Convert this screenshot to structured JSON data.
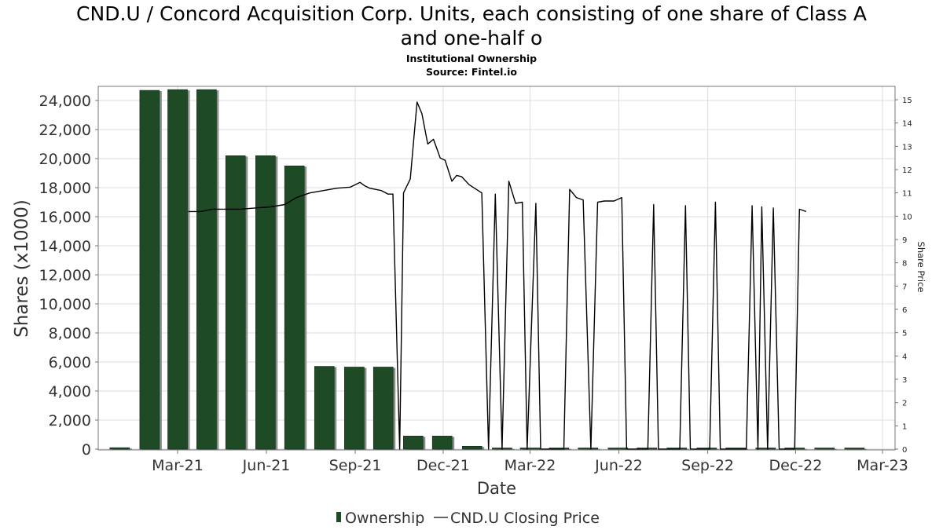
{
  "header": {
    "title_line1": "CND.U / Concord Acquisition Corp. Units, each consisting of one share of Class A",
    "title_line2": "and one-half o",
    "subtitle_line1": "Institutional Ownership",
    "subtitle_line2": "Source: Fintel.io"
  },
  "chart_data": {
    "type": "bar",
    "xlabel": "Date",
    "ylabel": "Shares (x1000)",
    "y2label": "Share Price",
    "ylim": [
      0,
      25000
    ],
    "y2lim": [
      0,
      15.5
    ],
    "yticks": [
      "0",
      "2,000",
      "4,000",
      "6,000",
      "8,000",
      "10,000",
      "12,000",
      "14,000",
      "16,000",
      "18,000",
      "20,000",
      "22,000",
      "24,000"
    ],
    "y2ticks": [
      "0",
      "1",
      "2",
      "3",
      "4",
      "5",
      "6",
      "7",
      "8",
      "9",
      "10",
      "11",
      "12",
      "13",
      "14",
      "15"
    ],
    "xticks": [
      "Mar-21",
      "Jun-21",
      "Sep-21",
      "Dec-21",
      "Mar-22",
      "Jun-22",
      "Sep-22",
      "Dec-22",
      "Mar-23"
    ],
    "grid": true,
    "legend_position": "bottom-center",
    "colors": {
      "bar": "#1e4a26",
      "bar_shadow": "#8c8c8c",
      "line": "#000000",
      "grid": "#dddddd"
    },
    "series": [
      {
        "name": "Ownership",
        "type": "bar",
        "categories": [
          "2020-12-31",
          "2021-01-31",
          "2021-03-01",
          "2021-03-31",
          "2021-04-30",
          "2021-05-31",
          "2021-06-30",
          "2021-07-31",
          "2021-08-31",
          "2021-09-30",
          "2021-10-31",
          "2021-11-30",
          "2021-12-31",
          "2022-01-31",
          "2022-03-01",
          "2022-03-31",
          "2022-04-30",
          "2022-05-31",
          "2022-06-30",
          "2022-07-31",
          "2022-08-31",
          "2022-09-30",
          "2022-10-31",
          "2022-11-30",
          "2022-12-31",
          "2023-01-31"
        ],
        "values": [
          100,
          24700,
          24750,
          24750,
          20200,
          20200,
          19500,
          5700,
          5650,
          5650,
          900,
          900,
          200,
          80,
          80,
          80,
          80,
          80,
          80,
          80,
          80,
          80,
          80,
          80,
          80,
          80
        ]
      },
      {
        "name": "CND.U Closing Price",
        "type": "line",
        "points": [
          [
            "2021-03-12",
            10.2
          ],
          [
            "2021-03-25",
            10.2
          ],
          [
            "2021-04-06",
            10.3
          ],
          [
            "2021-04-20",
            10.3
          ],
          [
            "2021-05-05",
            10.3
          ],
          [
            "2021-05-20",
            10.35
          ],
          [
            "2021-06-05",
            10.4
          ],
          [
            "2021-06-20",
            10.5
          ],
          [
            "2021-07-02",
            10.8
          ],
          [
            "2021-07-16",
            11.0
          ],
          [
            "2021-07-30",
            11.1
          ],
          [
            "2021-08-13",
            11.2
          ],
          [
            "2021-08-27",
            11.25
          ],
          [
            "2021-09-06",
            11.45
          ],
          [
            "2021-09-11",
            11.3
          ],
          [
            "2021-09-16",
            11.2
          ],
          [
            "2021-09-28",
            11.1
          ],
          [
            "2021-10-05",
            10.95
          ],
          [
            "2021-10-10",
            10.95
          ],
          [
            "2021-10-17",
            0
          ],
          [
            "2021-10-21",
            11.0
          ],
          [
            "2021-10-28",
            11.6
          ],
          [
            "2021-11-04",
            14.9
          ],
          [
            "2021-11-09",
            14.4
          ],
          [
            "2021-11-15",
            13.1
          ],
          [
            "2021-11-21",
            13.3
          ],
          [
            "2021-11-28",
            12.5
          ],
          [
            "2021-12-03",
            12.4
          ],
          [
            "2021-12-10",
            11.5
          ],
          [
            "2021-12-15",
            11.75
          ],
          [
            "2021-12-20",
            11.7
          ],
          [
            "2021-12-28",
            11.35
          ],
          [
            "2022-01-10",
            11.0
          ],
          [
            "2022-01-17",
            0
          ],
          [
            "2022-01-24",
            10.95
          ],
          [
            "2022-01-31",
            0
          ],
          [
            "2022-02-07",
            11.5
          ],
          [
            "2022-02-14",
            10.55
          ],
          [
            "2022-02-21",
            10.6
          ],
          [
            "2022-02-26",
            0
          ],
          [
            "2022-03-07",
            10.55
          ],
          [
            "2022-03-12",
            0
          ],
          [
            "2022-04-05",
            0
          ],
          [
            "2022-04-11",
            11.15
          ],
          [
            "2022-04-18",
            10.8
          ],
          [
            "2022-04-25",
            10.7
          ],
          [
            "2022-05-03",
            0
          ],
          [
            "2022-05-10",
            10.6
          ],
          [
            "2022-05-17",
            10.65
          ],
          [
            "2022-05-27",
            10.65
          ],
          [
            "2022-06-04",
            10.8
          ],
          [
            "2022-06-09",
            0
          ],
          [
            "2022-07-01",
            0
          ],
          [
            "2022-07-07",
            10.5
          ],
          [
            "2022-07-12",
            0
          ],
          [
            "2022-08-03",
            0
          ],
          [
            "2022-08-09",
            10.45
          ],
          [
            "2022-08-14",
            0
          ],
          [
            "2022-09-03",
            0
          ],
          [
            "2022-09-09",
            10.6
          ],
          [
            "2022-09-14",
            0
          ],
          [
            "2022-10-11",
            0
          ],
          [
            "2022-10-17",
            10.45
          ],
          [
            "2022-10-23",
            0
          ],
          [
            "2022-10-27",
            10.4
          ],
          [
            "2022-11-02",
            0
          ],
          [
            "2022-11-08",
            10.35
          ],
          [
            "2022-11-14",
            0
          ],
          [
            "2022-11-30",
            0
          ],
          [
            "2022-12-05",
            10.3
          ],
          [
            "2022-12-12",
            10.2
          ]
        ]
      }
    ]
  }
}
